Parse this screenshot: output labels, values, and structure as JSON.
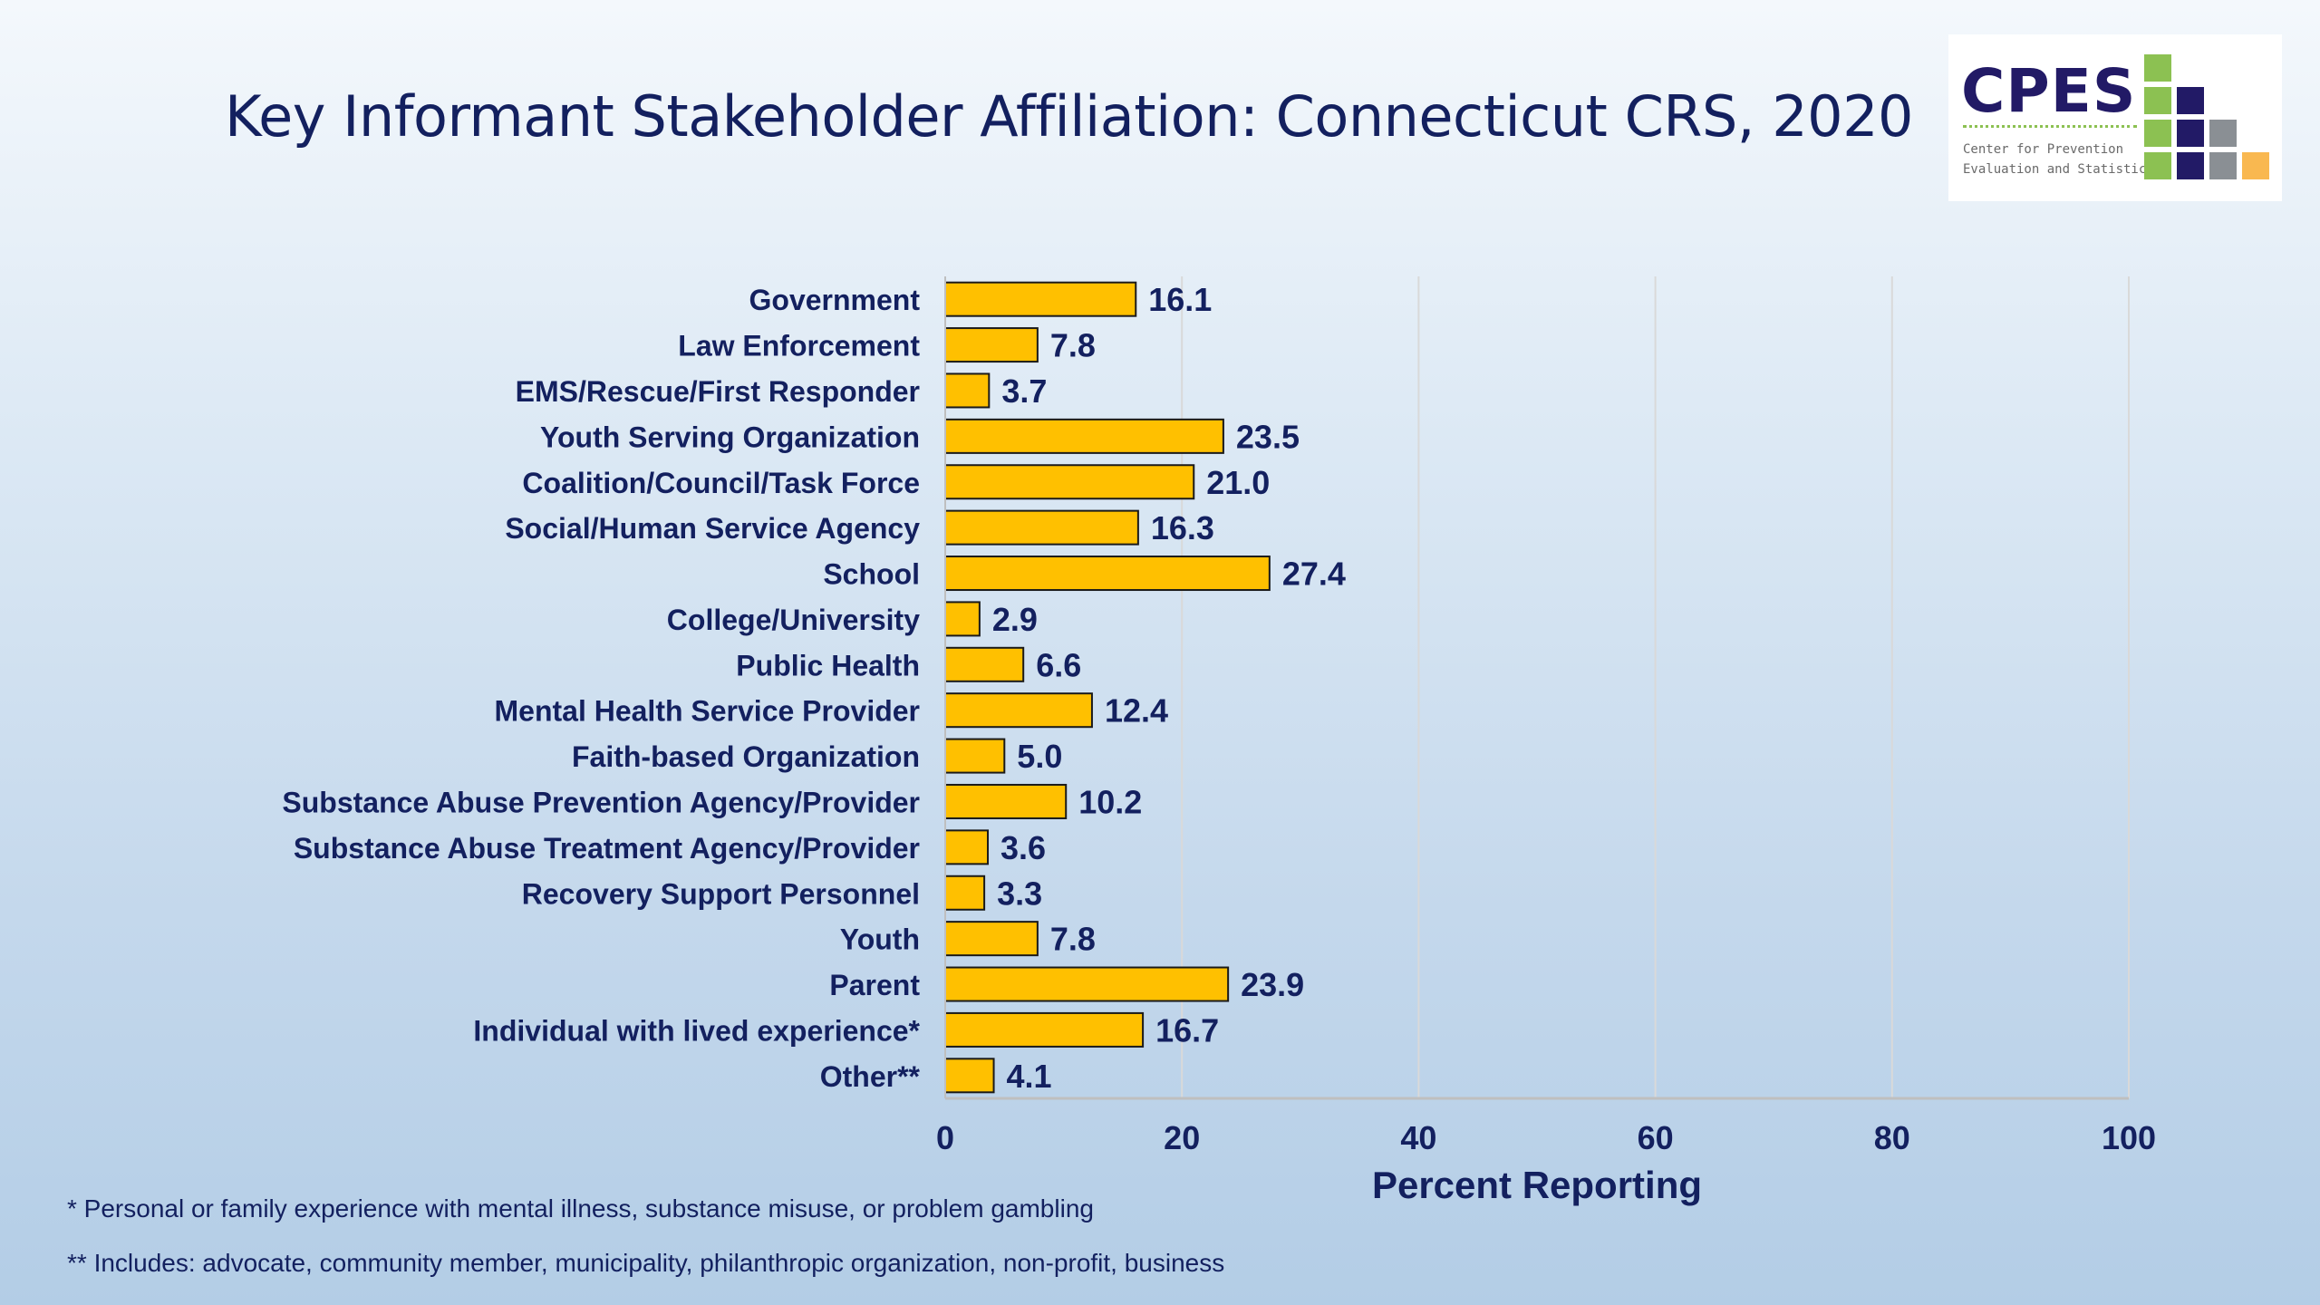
{
  "title": "Key Informant Stakeholder Affiliation: Connecticut CRS, 2020",
  "logo": {
    "name": "CPES",
    "line1": "Center for Prevention",
    "line2": "Evaluation and Statistics"
  },
  "colors": {
    "bar_fill": "#ffc000",
    "bar_stroke": "#1a1a1a",
    "text": "#13205f",
    "grid": "#d9d9d9",
    "logo_green": "#8cc152",
    "logo_navy": "#221a66",
    "logo_gray": "#8a8f94",
    "logo_orange": "#f9b850"
  },
  "chart_data": {
    "type": "bar",
    "orientation": "horizontal",
    "categories": [
      "Government",
      "Law Enforcement",
      "EMS/Rescue/First Responder",
      "Youth Serving Organization",
      "Coalition/Council/Task Force",
      "Social/Human Service Agency",
      "School",
      "College/University",
      "Public Health",
      "Mental Health Service Provider",
      "Faith-based Organization",
      "Substance Abuse Prevention Agency/Provider",
      "Substance Abuse Treatment Agency/Provider",
      "Recovery Support Personnel",
      "Youth",
      "Parent",
      "Individual with lived experience*",
      "Other**"
    ],
    "values": [
      16.1,
      7.8,
      3.7,
      23.5,
      21.0,
      16.3,
      27.4,
      2.9,
      6.6,
      12.4,
      5.0,
      10.2,
      3.6,
      3.3,
      7.8,
      23.9,
      16.7,
      4.1
    ],
    "value_labels": [
      "16.1",
      "7.8",
      "3.7",
      "23.5",
      "21.0",
      "16.3",
      "27.4",
      "2.9",
      "6.6",
      "12.4",
      "5.0",
      "10.2",
      "3.6",
      "3.3",
      "7.8",
      "23.9",
      "16.7",
      "4.1"
    ],
    "xlabel": "Percent Reporting",
    "xlim": [
      0,
      100
    ],
    "xticks": [
      0,
      20,
      40,
      60,
      80,
      100
    ],
    "grid": true,
    "legend": false
  },
  "footnotes": {
    "one": "* Personal or family experience with mental illness, substance misuse, or problem gambling",
    "two": "** Includes: advocate, community member, municipality, philanthropic organization, non-profit, business"
  }
}
